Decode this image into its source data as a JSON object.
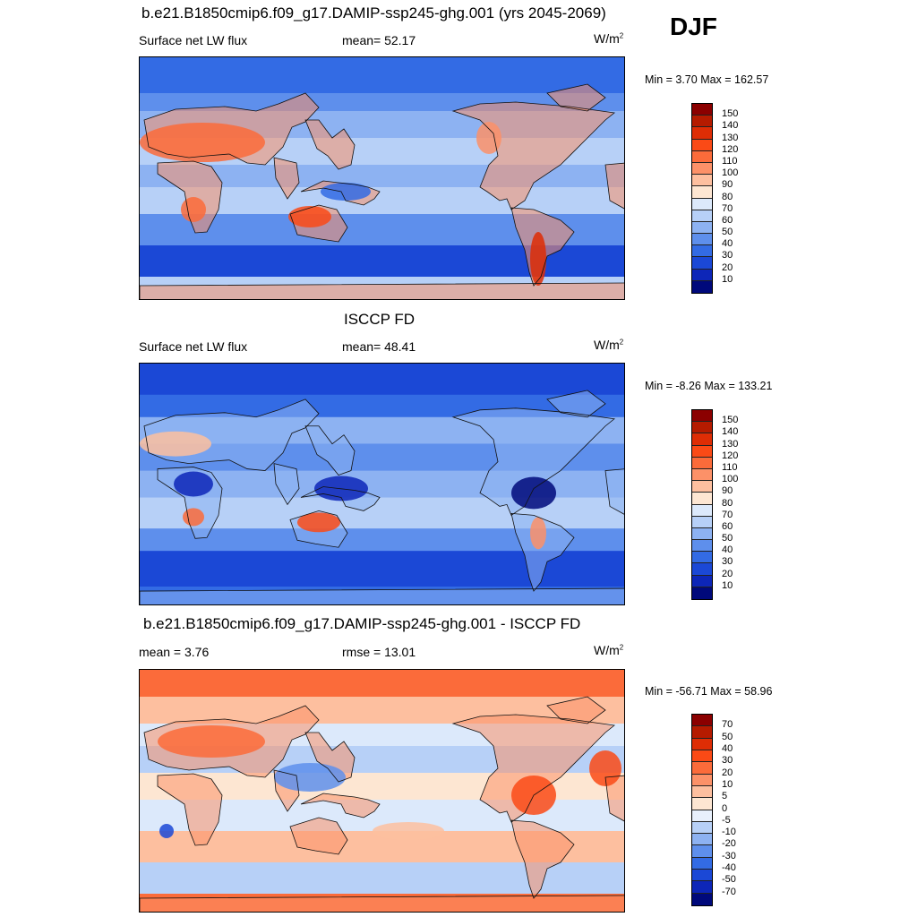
{
  "season": "DJF",
  "panels": [
    {
      "title": "b.e21.B1850cmip6.f09_g17.DAMIP-ssp245-ghg.001 (yrs 2045-2069)",
      "left_label": "Surface net LW flux",
      "center_label": "mean=  52.17",
      "units": "W/m",
      "units_sup": "2",
      "minmax": "Min =   3.70 Max = 162.57",
      "colorbar": {
        "labels": [
          "150",
          "140",
          "130",
          "120",
          "110",
          "100",
          "90",
          "80",
          "70",
          "60",
          "50",
          "40",
          "30",
          "20",
          "10"
        ],
        "colors": [
          "#8b0000",
          "#b51b00",
          "#de2d05",
          "#fa4a16",
          "#fb6b3a",
          "#fc9168",
          "#fdbf9f",
          "#fde6d2",
          "#dce9fb",
          "#b7d0f7",
          "#8db2f2",
          "#5e8fec",
          "#336be4",
          "#1b48d6",
          "#0d26b8",
          "#00097b"
        ]
      },
      "map_style": "abs1"
    },
    {
      "title": "ISCCP FD",
      "left_label": "Surface net LW flux",
      "center_label": "mean=  48.41",
      "units": "W/m",
      "units_sup": "2",
      "minmax": "Min =  -8.26 Max = 133.21",
      "colorbar": {
        "labels": [
          "150",
          "140",
          "130",
          "120",
          "110",
          "100",
          "90",
          "80",
          "70",
          "60",
          "50",
          "40",
          "30",
          "20",
          "10"
        ],
        "colors": [
          "#8b0000",
          "#b51b00",
          "#de2d05",
          "#fa4a16",
          "#fb6b3a",
          "#fc9168",
          "#fdbf9f",
          "#fde6d2",
          "#dce9fb",
          "#b7d0f7",
          "#8db2f2",
          "#5e8fec",
          "#336be4",
          "#1b48d6",
          "#0d26b8",
          "#00097b"
        ]
      },
      "map_style": "abs2"
    },
    {
      "title": "b.e21.B1850cmip6.f09_g17.DAMIP-ssp245-ghg.001 - ISCCP FD",
      "left_label": "mean =   3.76",
      "center_label": "rmse =  13.01",
      "units": "W/m",
      "units_sup": "2",
      "minmax": "Min = -56.71 Max =  58.96",
      "colorbar": {
        "labels": [
          "70",
          "50",
          "40",
          "30",
          "20",
          "10",
          "5",
          "0",
          "-5",
          "-10",
          "-20",
          "-30",
          "-40",
          "-50",
          "-70"
        ],
        "colors": [
          "#8b0000",
          "#b51b00",
          "#de2d05",
          "#fa4a16",
          "#fb6b3a",
          "#fc9168",
          "#fdbf9f",
          "#fde6d2",
          "#e8f0fc",
          "#b7d0f7",
          "#8db2f2",
          "#5e8fec",
          "#336be4",
          "#1b48d6",
          "#0d26b8",
          "#00097b"
        ]
      },
      "map_style": "diff"
    }
  ],
  "chart_data": [
    {
      "type": "heatmap",
      "title": "b.e21.B1850cmip6.f09_g17.DAMIP-ssp245-ghg.001 (yrs 2045-2069)",
      "variable": "Surface net LW flux",
      "units": "W/m2",
      "mean": 52.17,
      "min": 3.7,
      "max": 162.57,
      "levels": [
        10,
        20,
        30,
        40,
        50,
        60,
        70,
        80,
        90,
        100,
        110,
        120,
        130,
        140,
        150
      ]
    },
    {
      "type": "heatmap",
      "title": "ISCCP FD",
      "variable": "Surface net LW flux",
      "units": "W/m2",
      "mean": 48.41,
      "min": -8.26,
      "max": 133.21,
      "levels": [
        10,
        20,
        30,
        40,
        50,
        60,
        70,
        80,
        90,
        100,
        110,
        120,
        130,
        140,
        150
      ]
    },
    {
      "type": "heatmap",
      "title": "b.e21.B1850cmip6.f09_g17.DAMIP-ssp245-ghg.001 - ISCCP FD",
      "units": "W/m2",
      "mean": 3.76,
      "rmse": 13.01,
      "min": -56.71,
      "max": 58.96,
      "levels": [
        -70,
        -50,
        -40,
        -30,
        -20,
        -10,
        -5,
        0,
        5,
        10,
        20,
        30,
        40,
        50,
        70
      ]
    }
  ]
}
